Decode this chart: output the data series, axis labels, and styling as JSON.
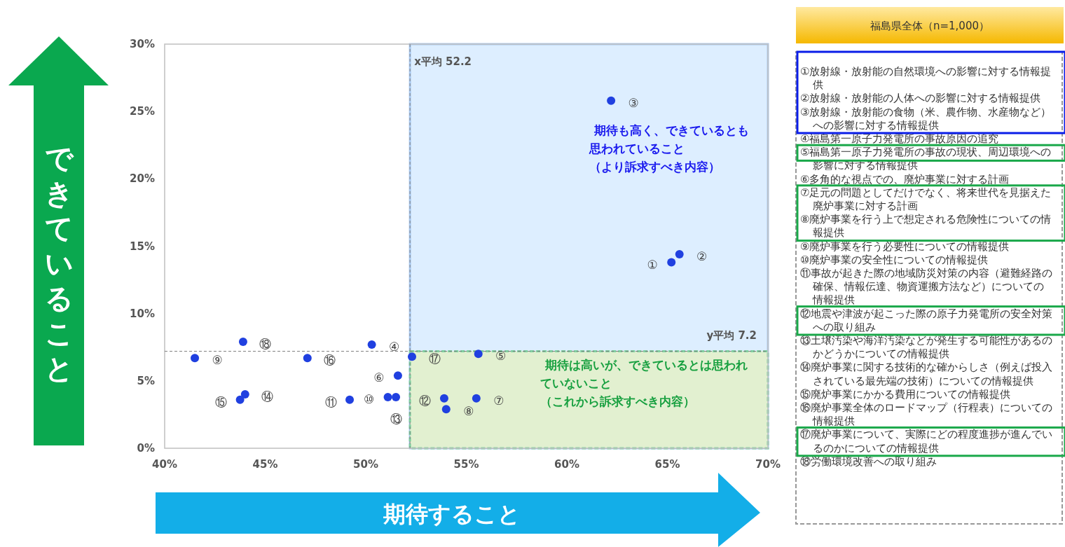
{
  "chart_data": [
    {
      "type": "scatter",
      "xlabel": "期待すること",
      "ylabel": "できていること",
      "xlim": [
        40,
        70
      ],
      "ylim": [
        0,
        30
      ],
      "xticks": [
        {
          "value": 40,
          "label": "40%"
        },
        {
          "value": 45,
          "label": "45%"
        },
        {
          "value": 50,
          "label": "50%"
        },
        {
          "value": 55,
          "label": "55%"
        },
        {
          "value": 60,
          "label": "60%"
        },
        {
          "value": 65,
          "label": "65%"
        },
        {
          "value": 70,
          "label": "70%"
        }
      ],
      "yticks": [
        {
          "value": 0,
          "label": "0%"
        },
        {
          "value": 5,
          "label": "5%"
        },
        {
          "value": 10,
          "label": "10%"
        },
        {
          "value": 15,
          "label": "15%"
        },
        {
          "value": 20,
          "label": "20%"
        },
        {
          "value": 25,
          "label": "25%"
        },
        {
          "value": 30,
          "label": "30%"
        }
      ],
      "grid": false,
      "marker": "circle",
      "series": [
        {
          "color": "#2040e0",
          "x": [
            65.2,
            65.6,
            62.2,
            50.3,
            55.6,
            51.6,
            55.5,
            54.0,
            41.5,
            51.1,
            49.2,
            53.9,
            51.5,
            44.0,
            43.75,
            47.1,
            52.3,
            43.9
          ],
          "values": [
            13.8,
            14.4,
            25.8,
            7.7,
            7.0,
            5.4,
            3.7,
            2.9,
            6.7,
            3.8,
            3.6,
            3.7,
            3.8,
            4.0,
            3.6,
            6.7,
            6.8,
            7.9
          ],
          "value_labels": [
            "①",
            "②",
            "③",
            "④",
            "⑤",
            "⑥",
            "⑦",
            "⑧",
            "⑨",
            "⑩",
            "⑪",
            "⑫",
            "⑬",
            "⑭",
            "⑮",
            "⑯",
            "⑰",
            "⑱"
          ]
        }
      ],
      "ref_lines": [
        {
          "axis": "x",
          "value": 52.2,
          "label": "x平均 52.2",
          "color": "#808080",
          "line_style": "dashed"
        },
        {
          "axis": "y",
          "value": 7.2,
          "label": "y平均 7.2",
          "color": "#808080",
          "line_style": "dashed"
        }
      ],
      "bands": [
        {
          "axis": "x",
          "from": 52.2,
          "to": 70,
          "color": "#ddeeff",
          "label": "期待も高く、できているとも思われていること（より訴求すべき内容）"
        },
        {
          "axis": "y",
          "from": 0,
          "to": 7.2,
          "color": "#e2f0d0",
          "label": "期待は高いが、できているとは思われていないこと（これから訴求すべき内容）"
        }
      ]
    },
    {
      "type": "other",
      "title": "福島県全体（n=1,000）",
      "annotations": [
        "①放射線・放射能の自然環境への影響に対する情報提供",
        "②放射線・放射能の人体への影響に対する情報提供",
        "③放射線・放射能の食物（米、農作物、水産物など）への影響に対する情報提供",
        "④福島第一原子力発電所の事故原因の追究",
        "⑤福島第一原子力発電所の事故の現状、周辺環境への影響に対する情報提供",
        "⑥多角的な視点での、廃炉事業に対する計画",
        "⑦足元の問題としてだけでなく、将来世代を見据えた廃炉事業に対する計画",
        "⑧廃炉事業を行う上で想定される危険性についての情報提供",
        "⑨廃炉事業を行う必要性についての情報提供",
        "⑩廃炉事業の安全性についての情報提供",
        "⑪事故が起きた際の地域防災対策の内容（避難経路の確保、情報伝達、物資運搬方法など）についての情報提供",
        "⑫地震や津波が起こった際の原子力発電所の安全対策への取り組み",
        "⑬土壌汚染や海洋汚染などが発生する可能性があるのかどうかについての情報提供",
        "⑭廃炉事業に関する技術的な確からしさ（例えば投入されている最先端の技術）についての情報提供",
        "⑮廃炉事業にかかる費用についての情報提供",
        "⑯廃炉事業全体のロードマップ（行程表）についての情報提供",
        "⑰廃炉事業について、実際にどの程度進捗が進んでいるのかについての情報提供",
        "⑱労働環境改善への取り組み"
      ]
    }
  ]
}
